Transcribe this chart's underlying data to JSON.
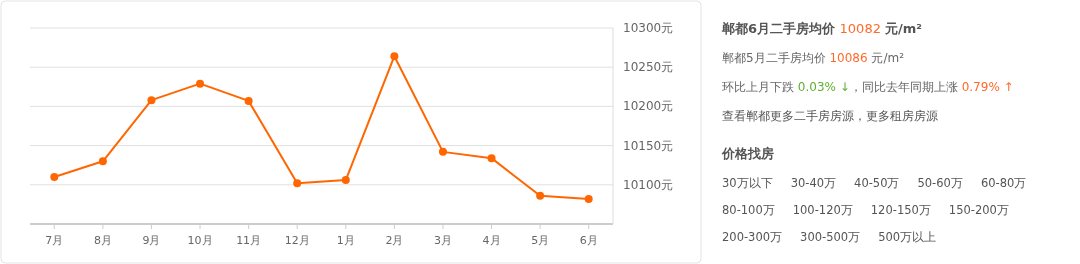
{
  "chart_data": [
    {
      "type": "line",
      "categories": [
        "7月",
        "8月",
        "9月",
        "10月",
        "11月",
        "12月",
        "1月",
        "2月",
        "3月",
        "4月",
        "5月",
        "6月"
      ],
      "values": [
        10110,
        10130,
        10208,
        10229,
        10207,
        10102,
        10106,
        10264,
        10142,
        10134,
        10086,
        10082
      ],
      "color": "#ff6600",
      "ylim": [
        10050,
        10300
      ],
      "yticks": [
        {
          "value": 10100,
          "label": "10100元"
        },
        {
          "value": 10150,
          "label": "10150元"
        },
        {
          "value": 10200,
          "label": "10200元"
        },
        {
          "value": 10250,
          "label": "10250元"
        },
        {
          "value": 10300,
          "label": "10300元"
        }
      ],
      "grid": "y",
      "marker": "circle",
      "line_style": "solid"
    },
    {
      "type": "other",
      "title": "郸都6月二手房均价 10082 元/m²",
      "subtitle": "郸都5月二手房均价 10086 元/m²",
      "annotations": [
        "环比上月下跌 0.03% ↓，同比去年同期上涨 0.79% ↑",
        "查看郸都更多二手房房源，更多租房房源",
        "价格找房",
        "30万以下",
        "30-40万",
        "40-50万",
        "50-60万",
        "60-80万",
        "80-100万",
        "100-120万",
        "120-150万",
        "150-200万",
        "200-300万",
        "300-500万",
        "500万以上"
      ]
    }
  ]
}
